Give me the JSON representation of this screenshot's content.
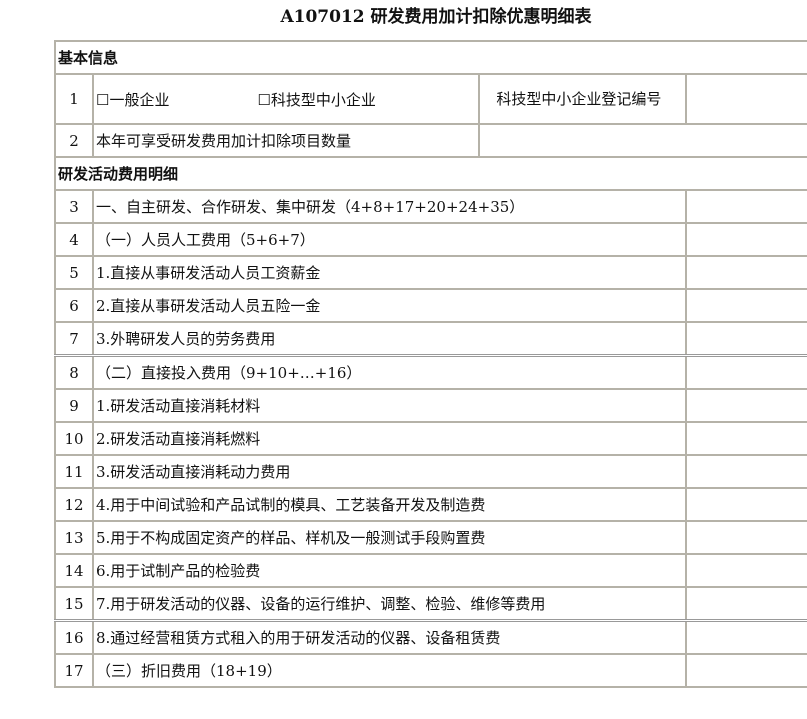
{
  "title": "A107012 研发费用加计扣除优惠明细表",
  "basic_info": {
    "heading": "基本信息",
    "row1": {
      "num": "1",
      "option_general": "☐一般企业",
      "option_tech_sme": "☐科技型中小企业",
      "reg_label": "科技型中小企业登记编号"
    },
    "row2": {
      "num": "2",
      "label": "本年可享受研发费用加计扣除项目数量"
    }
  },
  "detail": {
    "heading": "研发活动费用明细",
    "rows": [
      {
        "num": "3",
        "label": "一、自主研发、合作研发、集中研发（4+8+17+20+24+35）"
      },
      {
        "num": "4",
        "label": "（一）人员人工费用（5+6+7）"
      },
      {
        "num": "5",
        "label": "1.直接从事研发活动人员工资薪金"
      },
      {
        "num": "6",
        "label": "2.直接从事研发活动人员五险一金"
      },
      {
        "num": "7",
        "label": "3.外聘研发人员的劳务费用"
      },
      {
        "num": "8",
        "label": "（二）直接投入费用（9+10+…+16）"
      },
      {
        "num": "9",
        "label": "1.研发活动直接消耗材料"
      },
      {
        "num": "10",
        "label": "2.研发活动直接消耗燃料"
      },
      {
        "num": "11",
        "label": "3.研发活动直接消耗动力费用"
      },
      {
        "num": "12",
        "label": "4.用于中间试验和产品试制的模具、工艺装备开发及制造费"
      },
      {
        "num": "13",
        "label": "5.用于不构成固定资产的样品、样机及一般测试手段购置费"
      },
      {
        "num": "14",
        "label": "6.用于试制产品的检验费"
      },
      {
        "num": "15",
        "label": "7.用于研发活动的仪器、设备的运行维护、调整、检验、维修等费用"
      },
      {
        "num": "16",
        "label": "8.通过经营租赁方式租入的用于研发活动的仪器、设备租赁费"
      },
      {
        "num": "17",
        "label": "（三）折旧费用（18+19）"
      }
    ]
  }
}
